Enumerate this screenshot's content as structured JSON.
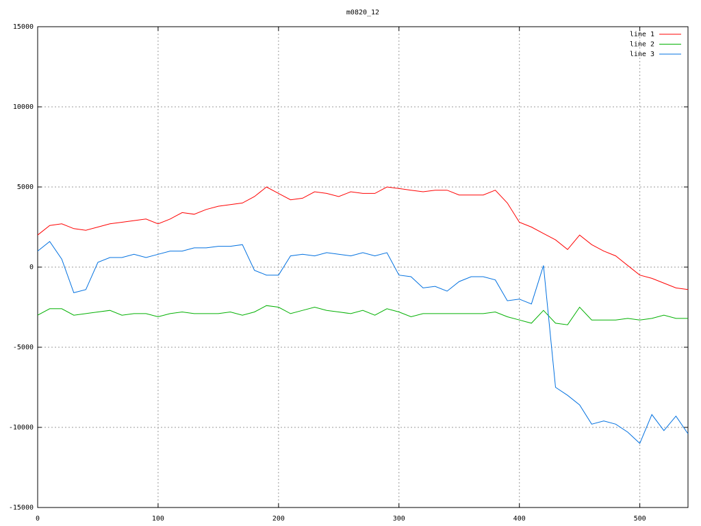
{
  "chart_data": {
    "type": "line",
    "title": "m0820_12",
    "x": [
      0,
      10,
      20,
      30,
      40,
      50,
      60,
      70,
      80,
      90,
      100,
      110,
      120,
      130,
      140,
      150,
      160,
      170,
      180,
      190,
      200,
      210,
      220,
      230,
      240,
      250,
      260,
      270,
      280,
      290,
      300,
      310,
      320,
      330,
      340,
      350,
      360,
      370,
      380,
      390,
      400,
      410,
      420,
      430,
      440,
      450,
      460,
      470,
      480,
      490,
      500,
      510,
      520,
      530,
      540
    ],
    "series": [
      {
        "name": "line 1",
        "color": "#ff0000",
        "values": [
          2000,
          2600,
          2700,
          2400,
          2300,
          2500,
          2700,
          2800,
          2900,
          3000,
          2700,
          3000,
          3400,
          3300,
          3600,
          3800,
          3900,
          4000,
          4400,
          5000,
          4600,
          4200,
          4300,
          4700,
          4600,
          4400,
          4700,
          4600,
          4600,
          5000,
          4900,
          4800,
          4700,
          4800,
          4800,
          4500,
          4500,
          4500,
          4800,
          4000,
          2800,
          2500,
          2100,
          1700,
          1100,
          2000,
          1400,
          1000,
          700,
          100,
          -500,
          -700,
          -1000,
          -1300,
          -1400
        ]
      },
      {
        "name": "line 2",
        "color": "#00b000",
        "values": [
          -3000,
          -2600,
          -2600,
          -3000,
          -2900,
          -2800,
          -2700,
          -3000,
          -2900,
          -2900,
          -3100,
          -2900,
          -2800,
          -2900,
          -2900,
          -2900,
          -2800,
          -3000,
          -2800,
          -2400,
          -2500,
          -2900,
          -2700,
          -2500,
          -2700,
          -2800,
          -2900,
          -2700,
          -3000,
          -2600,
          -2800,
          -3100,
          -2900,
          -2900,
          -2900,
          -2900,
          -2900,
          -2900,
          -2800,
          -3100,
          -3300,
          -3500,
          -2700,
          -3500,
          -3600,
          -2500,
          -3300,
          -3300,
          -3300,
          -3200,
          -3300,
          -3200,
          -3000,
          -3200,
          -3200
        ]
      },
      {
        "name": "line 3",
        "color": "#0070e0",
        "values": [
          1000,
          1600,
          500,
          -1600,
          -1400,
          300,
          600,
          600,
          800,
          600,
          800,
          1000,
          1000,
          1200,
          1200,
          1300,
          1300,
          1400,
          -200,
          -500,
          -500,
          700,
          800,
          700,
          900,
          800,
          700,
          900,
          700,
          900,
          -500,
          -600,
          -1300,
          -1200,
          -1500,
          -900,
          -600,
          -600,
          -800,
          -2100,
          -2000,
          -2300,
          100,
          -7500,
          -8000,
          -8600,
          -9800,
          -9600,
          -9800,
          -10300,
          -11000,
          -9200,
          -10200,
          -9300,
          -10400
        ]
      }
    ],
    "xlim": [
      0,
      540
    ],
    "ylim": [
      -15000,
      15000
    ],
    "xticks": [
      0,
      100,
      200,
      300,
      400,
      500
    ],
    "yticks": [
      -15000,
      -10000,
      -5000,
      0,
      5000,
      10000,
      15000
    ],
    "grid": true,
    "legend": "top-right"
  }
}
